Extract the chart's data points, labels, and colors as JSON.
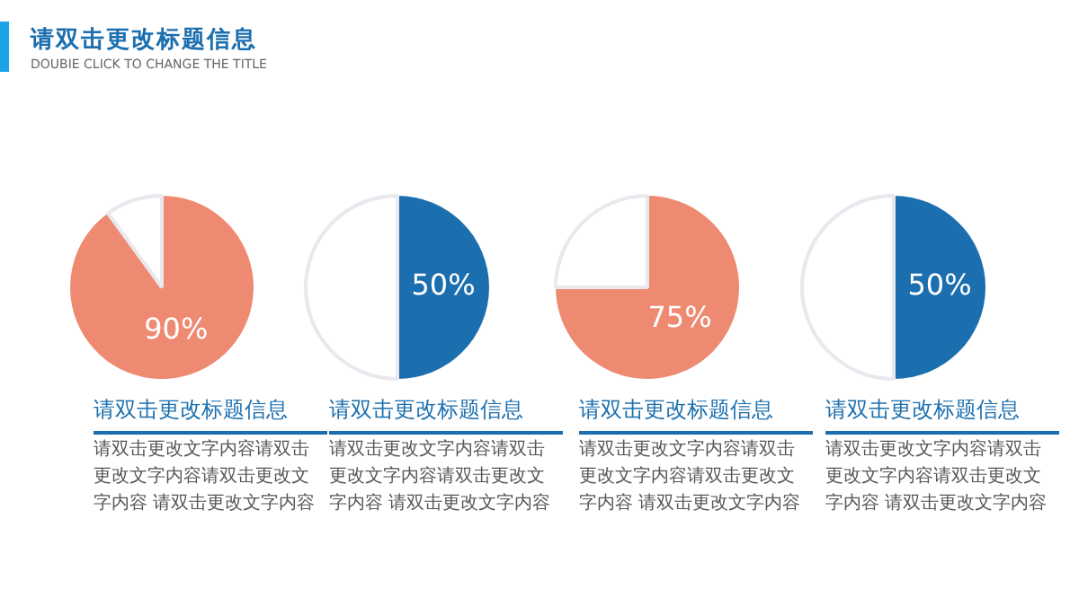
{
  "chart_data": [
    {
      "type": "other",
      "title": "请双击更改标题信息",
      "subtitle": "DOUBIE CLICK TO CHANGE THE TITLE"
    },
    {
      "type": "pie",
      "title": "请双击更改标题信息",
      "categories": [
        null,
        null
      ],
      "values": [
        90,
        10
      ],
      "colors": [
        "#ef8a72",
        "#ffffff"
      ],
      "value_labels": [
        "90%",
        null
      ],
      "annotations": [
        "请双击更改文字内容请双击更改文字内容请双击更改文字内容 请双击更改文字内容"
      ]
    },
    {
      "type": "pie",
      "title": "请双击更改标题信息",
      "categories": [
        null,
        null
      ],
      "values": [
        50,
        50
      ],
      "colors": [
        "#1c6fae",
        "#ffffff"
      ],
      "value_labels": [
        "50%",
        null
      ],
      "annotations": [
        "请双击更改文字内容请双击更改文字内容请双击更改文字内容 请双击更改文字内容"
      ]
    },
    {
      "type": "pie",
      "title": "请双击更改标题信息",
      "categories": [
        null,
        null
      ],
      "values": [
        75,
        25
      ],
      "colors": [
        "#ef8a72",
        "#ffffff"
      ],
      "value_labels": [
        "75%",
        null
      ],
      "annotations": [
        "请双击更改文字内容请双击更改文字内容请双击更改文字内容 请双击更改文字内容"
      ]
    },
    {
      "type": "pie",
      "title": "请双击更改标题信息",
      "categories": [
        null,
        null
      ],
      "values": [
        50,
        50
      ],
      "colors": [
        "#1c6fae",
        "#ffffff"
      ],
      "value_labels": [
        "50%",
        null
      ],
      "annotations": [
        "请双击更改文字内容请双击更改文字内容请双击更改文字内容 请双击更改文字内容"
      ]
    }
  ]
}
